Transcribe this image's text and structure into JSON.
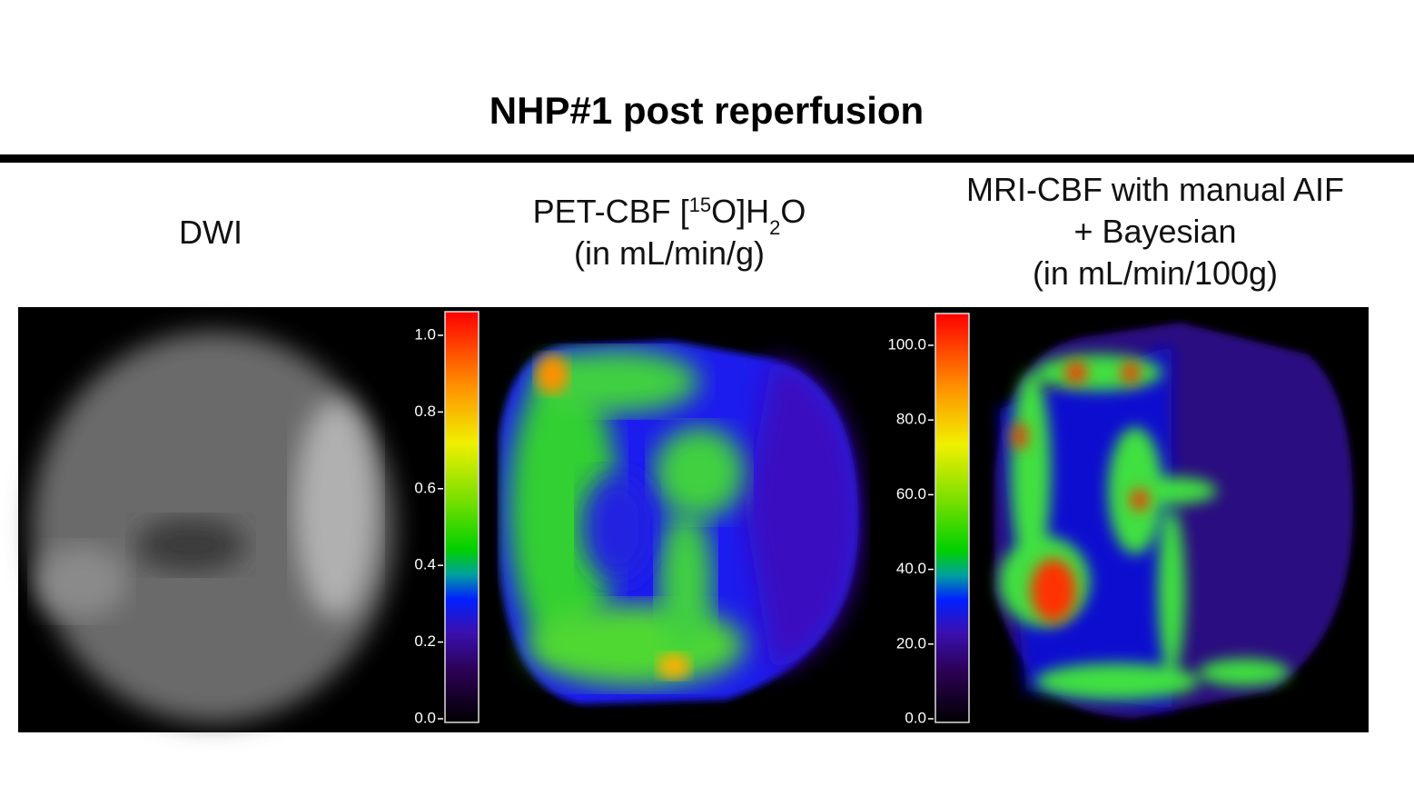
{
  "header": {
    "title": "NHP#1 post reperfusion"
  },
  "panels": [
    {
      "label_lines": [
        [
          "DWI"
        ]
      ]
    },
    {
      "label_lines": [
        [
          "PET-CBF [",
          "15",
          "O]H",
          "2",
          "O"
        ],
        [
          "(in mL/min/g)"
        ]
      ],
      "colorbar_ticks": [
        "1.0",
        "0.8",
        "0.6",
        "0.4",
        "0.2",
        "0.0"
      ]
    },
    {
      "label_lines": [
        [
          "MRI-CBF with manual AIF"
        ],
        [
          "+ Bayesian"
        ],
        [
          "(in mL/min/100g)"
        ]
      ],
      "colorbar_ticks": [
        "100.0",
        "80.0",
        "60.0",
        "40.0",
        "20.0",
        "0.0"
      ]
    }
  ]
}
